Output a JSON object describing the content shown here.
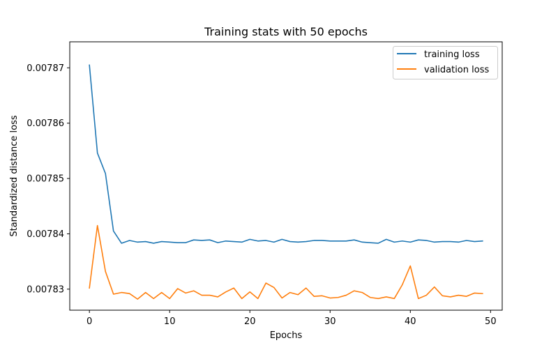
{
  "chart_data": {
    "type": "line",
    "title": "Training stats with 50 epochs",
    "xlabel": "Epochs",
    "ylabel": "Standardized distance loss",
    "xlim": [
      -2.45,
      51.45
    ],
    "ylim": [
      0.0078262,
      0.0078747
    ],
    "xticks": [
      0,
      10,
      20,
      30,
      40,
      50
    ],
    "xtick_labels": [
      "0",
      "10",
      "20",
      "30",
      "40",
      "50"
    ],
    "yticks": [
      0.00783,
      0.00784,
      0.00785,
      0.00786,
      0.00787
    ],
    "ytick_labels": [
      "0.00783",
      "0.00784",
      "0.00785",
      "0.00786",
      "0.00787"
    ],
    "grid": false,
    "legend_position": "top-right",
    "x": [
      0,
      1,
      2,
      3,
      4,
      5,
      6,
      7,
      8,
      9,
      10,
      11,
      12,
      13,
      14,
      15,
      16,
      17,
      18,
      19,
      20,
      21,
      22,
      23,
      24,
      25,
      26,
      27,
      28,
      29,
      30,
      31,
      32,
      33,
      34,
      35,
      36,
      37,
      38,
      39,
      40,
      41,
      42,
      43,
      44,
      45,
      46,
      47,
      48,
      49
    ],
    "series": [
      {
        "name": "training loss",
        "color": "#1f77b4",
        "values": [
          0.0078705,
          0.0078546,
          0.0078509,
          0.0078405,
          0.0078383,
          0.0078388,
          0.0078385,
          0.0078386,
          0.0078383,
          0.0078386,
          0.0078385,
          0.0078384,
          0.0078384,
          0.0078389,
          0.0078388,
          0.0078389,
          0.0078384,
          0.0078387,
          0.0078386,
          0.0078385,
          0.007839,
          0.0078387,
          0.0078388,
          0.0078385,
          0.007839,
          0.0078386,
          0.0078385,
          0.0078386,
          0.0078388,
          0.0078388,
          0.0078387,
          0.0078387,
          0.0078387,
          0.0078389,
          0.0078385,
          0.0078384,
          0.0078383,
          0.007839,
          0.0078385,
          0.0078387,
          0.0078385,
          0.0078389,
          0.0078388,
          0.0078385,
          0.0078386,
          0.0078386,
          0.0078385,
          0.0078388,
          0.0078386,
          0.0078387
        ]
      },
      {
        "name": "validation loss",
        "color": "#ff7f0e",
        "values": [
          0.0078302,
          0.0078415,
          0.0078332,
          0.0078291,
          0.0078294,
          0.0078292,
          0.0078282,
          0.0078294,
          0.0078283,
          0.0078294,
          0.0078283,
          0.0078301,
          0.0078293,
          0.0078297,
          0.0078289,
          0.0078289,
          0.0078286,
          0.0078295,
          0.0078302,
          0.0078283,
          0.0078295,
          0.0078283,
          0.0078311,
          0.0078303,
          0.0078284,
          0.0078294,
          0.007829,
          0.0078302,
          0.0078287,
          0.0078288,
          0.0078284,
          0.0078285,
          0.0078289,
          0.0078297,
          0.0078294,
          0.0078285,
          0.0078283,
          0.0078286,
          0.0078283,
          0.0078308,
          0.0078342,
          0.0078283,
          0.0078289,
          0.0078304,
          0.0078288,
          0.0078286,
          0.0078289,
          0.0078287,
          0.0078293,
          0.0078292
        ]
      }
    ]
  }
}
